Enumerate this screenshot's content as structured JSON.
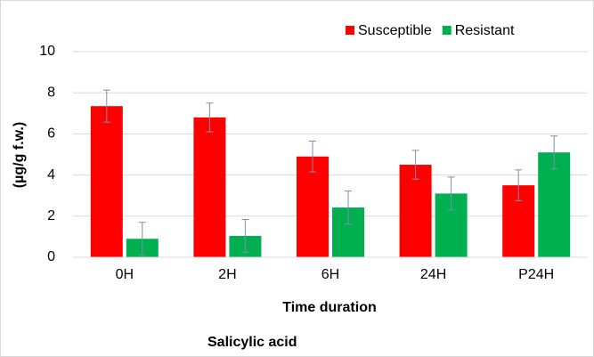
{
  "chart_data": {
    "type": "bar",
    "x_label": "Time duration",
    "y_label": "(µg/g f.w.)",
    "caption": "Salicylic acid",
    "categories": [
      "0H",
      "2H",
      "6H",
      "24H",
      "P24H"
    ],
    "series": [
      {
        "name": "Susceptible",
        "color": "#ff0000",
        "values": [
          7.35,
          6.8,
          4.9,
          4.5,
          3.5
        ],
        "errors": [
          0.78,
          0.7,
          0.75,
          0.7,
          0.75
        ]
      },
      {
        "name": "Resistant",
        "color": "#00b050",
        "values": [
          0.9,
          1.04,
          2.42,
          3.1,
          5.1
        ],
        "errors": [
          0.8,
          0.8,
          0.8,
          0.8,
          0.8
        ]
      }
    ],
    "ylim": [
      0,
      10
    ],
    "yticks": [
      0,
      2,
      4,
      6,
      8,
      10
    ],
    "grid": true,
    "legend": "top-right"
  }
}
